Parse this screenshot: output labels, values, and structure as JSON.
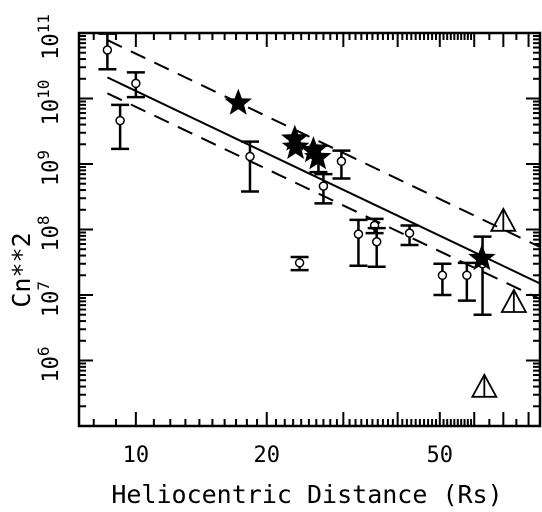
{
  "chart_data": {
    "type": "scatter",
    "xlabel": "Heliocentric Distance (Rs)",
    "ylabel": "Cn**2",
    "xscale": "log",
    "yscale": "log",
    "xlim": [
      7.4,
      85
    ],
    "ylim": [
      100000.0,
      100000000000.0
    ],
    "x_ticks": [
      {
        "value": 10,
        "label": "10"
      },
      {
        "value": 20,
        "label": "20"
      },
      {
        "value": 50,
        "label": "50"
      }
    ],
    "y_ticks": [
      {
        "value": 1000000.0,
        "base": "10",
        "exp": "6"
      },
      {
        "value": 10000000.0,
        "base": "10",
        "exp": "7"
      },
      {
        "value": 100000000.0,
        "base": "10",
        "exp": "8"
      },
      {
        "value": 1000000000.0,
        "base": "10",
        "exp": "9"
      },
      {
        "value": 10000000000.0,
        "base": "10",
        "exp": "10"
      },
      {
        "value": 100000000000.0,
        "base": "10",
        "exp": "11"
      }
    ],
    "grid": false,
    "legend": "none",
    "series": [
      {
        "marker": "circle",
        "points": [
          {
            "x": 8.6,
            "y": 55000000000.0,
            "ylo": 28000000000.0,
            "yhi": 98000000000.0
          },
          {
            "x": 10.0,
            "y": 17000000000.0,
            "ylo": 10500000000.0,
            "yhi": 25000000000.0
          },
          {
            "x": 9.2,
            "y": 4600000000.0,
            "ylo": 1700000000.0,
            "yhi": 8000000000.0
          },
          {
            "x": 18.3,
            "y": 1300000000.0,
            "ylo": 380000000.0,
            "yhi": 2200000000.0
          },
          {
            "x": 23.8,
            "y": 31000000.0,
            "ylo": 24000000.0,
            "yhi": 38000000.0
          },
          {
            "x": 26.3,
            "y": 1300000000.0,
            "ylo": 750000000.0,
            "yhi": 1900000000.0
          },
          {
            "x": 27.0,
            "y": 460000000.0,
            "ylo": 250000000.0,
            "yhi": 700000000.0
          },
          {
            "x": 29.7,
            "y": 1100000000.0,
            "ylo": 600000000.0,
            "yhi": 1600000000.0
          },
          {
            "x": 32.5,
            "y": 85000000.0,
            "ylo": 28000000.0,
            "yhi": 140000000.0
          },
          {
            "x": 35.4,
            "y": 115000000.0,
            "ylo": 88000000.0,
            "yhi": 145000000.0
          },
          {
            "x": 35.8,
            "y": 65000000.0,
            "ylo": 27000000.0,
            "yhi": 105000000.0
          },
          {
            "x": 42.6,
            "y": 88000000.0,
            "ylo": 58000000.0,
            "yhi": 115000000.0
          },
          {
            "x": 50.7,
            "y": 20000000.0,
            "ylo": 10000000.0,
            "yhi": 30000000.0
          },
          {
            "x": 57.7,
            "y": 20000000.0,
            "ylo": 8200000.0,
            "yhi": 31000000.0
          },
          {
            "x": 62.7,
            "y": 30000000.0,
            "ylo": 5000000.0,
            "yhi": 78000000.0
          }
        ]
      },
      {
        "marker": "star",
        "points": [
          {
            "x": 17.2,
            "y": 8500000000.0
          },
          {
            "x": 23.2,
            "y": 2400000000.0
          },
          {
            "x": 23.3,
            "y": 1800000000.0
          },
          {
            "x": 25.6,
            "y": 1600000000.0
          },
          {
            "x": 26.2,
            "y": 1250000000.0
          },
          {
            "x": 62.5,
            "y": 36000000.0
          }
        ]
      },
      {
        "marker": "open-triangle",
        "points": [
          {
            "x": 70.0,
            "y": 130000000.0
          },
          {
            "x": 74.0,
            "y": 7500000.0
          },
          {
            "x": 63.3,
            "y": 380000.0
          }
        ]
      }
    ],
    "lines": [
      {
        "style": "solid",
        "x": [
          8.6,
          85
        ],
        "y": [
          21000000000.0,
          15000000.0
        ]
      },
      {
        "style": "dashed",
        "x": [
          8.6,
          85
        ],
        "y": [
          78000000000.0,
          54000000.0
        ]
      },
      {
        "style": "dashed",
        "x": [
          8.6,
          85
        ],
        "y": [
          12000000000.0,
          8700000.0
        ]
      }
    ]
  }
}
